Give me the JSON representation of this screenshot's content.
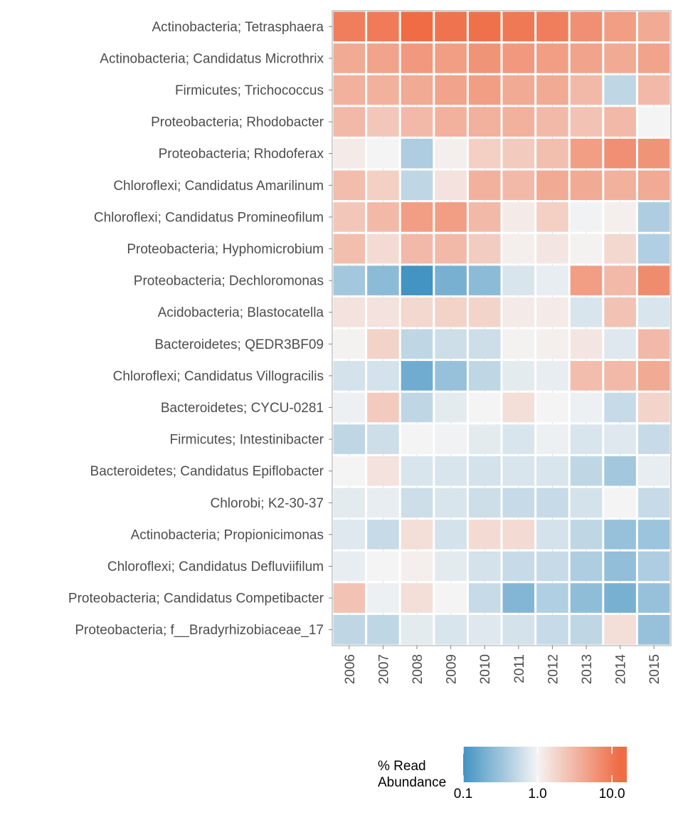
{
  "chart_data": {
    "type": "heatmap",
    "x": [
      "2006",
      "2007",
      "2008",
      "2009",
      "2010",
      "2011",
      "2012",
      "2013",
      "2014",
      "2015"
    ],
    "y": [
      "Actinobacteria; Tetrasphaera",
      "Actinobacteria; Candidatus Microthrix",
      "Firmicutes; Trichococcus",
      "Proteobacteria; Rhodobacter",
      "Proteobacteria; Rhodoferax",
      "Chloroflexi; Candidatus Amarilinum",
      "Chloroflexi; Candidatus Promineofilum",
      "Proteobacteria; Hyphomicrobium",
      "Proteobacteria; Dechloromonas",
      "Acidobacteria; Blastocatella",
      "Bacteroidetes; QEDR3BF09",
      "Chloroflexi; Candidatus Villogracilis",
      "Bacteroidetes; CYCU-0281",
      "Firmicutes; Intestinibacter",
      "Bacteroidetes; Candidatus Epiflobacter",
      "Chlorobi; K2-30-37",
      "Actinobacteria; Propionicimonas",
      "Chloroflexi; Candidatus Defluviifilum",
      "Proteobacteria; Candidatus Competibacter",
      "Proteobacteria; f__Bradyrhizobiaceae_17"
    ],
    "values": [
      [
        9.0,
        9.5,
        13.0,
        11.0,
        11.5,
        10.0,
        9.0,
        6.5,
        5.0,
        4.0
      ],
      [
        4.0,
        4.5,
        5.5,
        5.0,
        6.0,
        5.5,
        5.0,
        4.5,
        4.0,
        4.5
      ],
      [
        3.5,
        3.5,
        4.0,
        4.5,
        5.0,
        4.0,
        4.0,
        3.0,
        0.5,
        3.0
      ],
      [
        3.0,
        2.3,
        3.0,
        3.5,
        3.5,
        3.5,
        3.0,
        2.5,
        3.0,
        1.0
      ],
      [
        1.2,
        1.0,
        0.4,
        1.1,
        2.0,
        2.2,
        2.7,
        5.0,
        6.5,
        6.0
      ],
      [
        2.8,
        2.0,
        0.5,
        1.4,
        3.5,
        3.0,
        4.0,
        4.0,
        3.5,
        4.0
      ],
      [
        2.3,
        3.0,
        5.0,
        5.0,
        3.0,
        1.2,
        2.0,
        0.95,
        1.1,
        0.4
      ],
      [
        2.7,
        1.6,
        3.0,
        3.0,
        2.1,
        1.1,
        1.3,
        1.05,
        1.7,
        0.42
      ],
      [
        0.35,
        0.26,
        0.1,
        0.2,
        0.26,
        0.7,
        0.85,
        5.0,
        3.0,
        7.0
      ],
      [
        1.4,
        1.4,
        1.7,
        1.9,
        1.8,
        1.2,
        1.2,
        0.7,
        2.5,
        0.7
      ],
      [
        1.05,
        1.9,
        0.5,
        0.6,
        0.6,
        1.05,
        1.1,
        1.3,
        0.75,
        3.0
      ],
      [
        0.65,
        0.65,
        0.18,
        0.3,
        0.5,
        0.8,
        0.85,
        2.8,
        3.0,
        4.0
      ],
      [
        0.9,
        2.2,
        0.5,
        0.8,
        1.0,
        1.5,
        1.0,
        0.9,
        0.55,
        1.8
      ],
      [
        0.5,
        0.6,
        1.0,
        0.95,
        0.8,
        0.7,
        0.9,
        0.7,
        0.75,
        0.55
      ],
      [
        1.0,
        1.4,
        0.7,
        0.7,
        0.65,
        0.7,
        0.7,
        0.5,
        0.35,
        0.85
      ],
      [
        0.8,
        0.85,
        0.6,
        0.7,
        0.6,
        0.55,
        0.55,
        0.65,
        1.0,
        0.55
      ],
      [
        0.75,
        0.55,
        1.5,
        0.65,
        1.6,
        1.6,
        0.65,
        0.5,
        0.3,
        0.32
      ],
      [
        0.85,
        1.0,
        1.1,
        0.8,
        0.65,
        0.55,
        0.55,
        0.4,
        0.28,
        0.4
      ],
      [
        2.5,
        0.9,
        1.5,
        1.0,
        0.55,
        0.23,
        0.42,
        0.27,
        0.2,
        0.3
      ],
      [
        0.5,
        0.5,
        0.8,
        0.7,
        0.75,
        0.65,
        0.55,
        0.5,
        1.5,
        0.3
      ]
    ],
    "scale": "log",
    "legend": {
      "title_lines": [
        "% Read",
        "Abundance"
      ],
      "ticks": [
        0.1,
        1.0,
        10.0
      ],
      "tick_labels": [
        "0.1",
        "1.0",
        "10.0"
      ],
      "colors": {
        "low": "#4393c3",
        "mid": "#f4f4f4",
        "high": "#ef6c45"
      },
      "placement": "bottom"
    },
    "xlabel": "",
    "ylabel": "",
    "title": ""
  }
}
